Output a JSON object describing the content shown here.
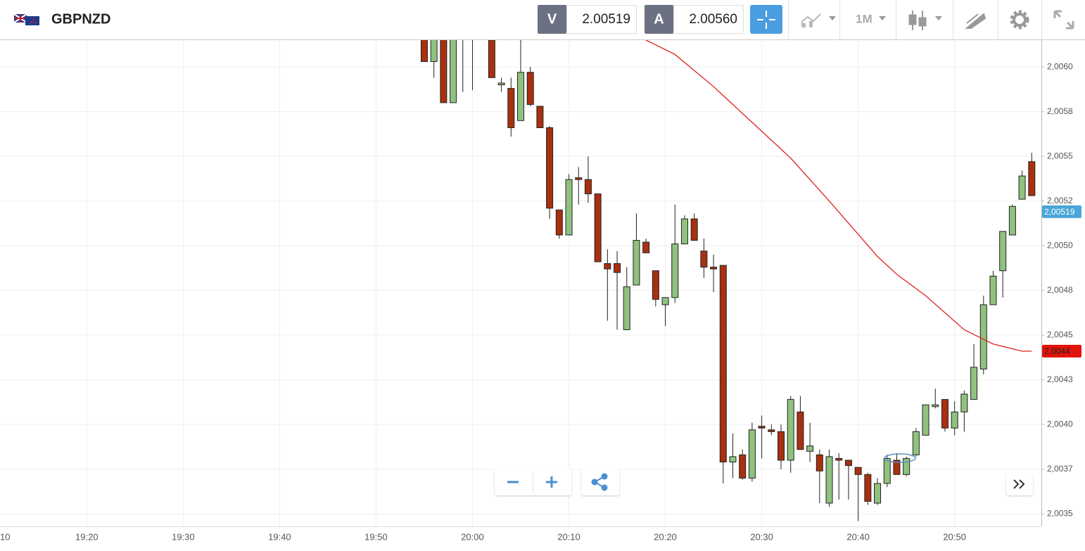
{
  "toolbar": {
    "symbol": "GBPNZD",
    "bid_label": "V",
    "bid": "2.00519",
    "ask_label": "A",
    "ask": "2.00560",
    "timeframe": "1M"
  },
  "chart_data": {
    "type": "candlestick",
    "x": [
      "19:55",
      "19:56",
      "19:57",
      "19:58",
      "19:59",
      "20:00",
      "20:02",
      "20:03",
      "20:04",
      "20:05",
      "20:06",
      "20:07",
      "20:08",
      "20:09",
      "20:10",
      "20:11",
      "20:12",
      "20:13",
      "20:14",
      "20:15",
      "20:16",
      "20:17",
      "20:18",
      "20:19",
      "20:20",
      "20:21",
      "20:22",
      "20:23",
      "20:24",
      "20:25",
      "20:26",
      "20:27",
      "20:28",
      "20:29",
      "20:30",
      "20:31",
      "20:32",
      "20:33",
      "20:34",
      "20:35",
      "20:36",
      "20:37",
      "20:38",
      "20:39",
      "20:40",
      "20:41",
      "20:42",
      "20:43",
      "20:44",
      "20:45",
      "20:46",
      "20:47",
      "20:48",
      "20:49",
      "20:50",
      "20:51",
      "20:52",
      "20:53",
      "20:54",
      "20:55",
      "20:56",
      "20:57",
      "20:58"
    ],
    "open": [
      2.00618,
      2.00603,
      2.00618,
      2.0058,
      2.0062,
      2.0062,
      2.00615,
      2.0059,
      2.00588,
      2.0057,
      2.00597,
      2.00578,
      2.00566,
      2.0052,
      2.00506,
      2.00538,
      2.00537,
      2.00529,
      2.0049,
      2.0049,
      2.00453,
      2.00478,
      2.00502,
      2.00486,
      2.00467,
      2.00471,
      2.00501,
      2.00515,
      2.00497,
      2.00488,
      2.00489,
      2.00379,
      2.00383,
      2.0037,
      2.00399,
      2.00397,
      2.00396,
      2.0038,
      2.00407,
      2.00385,
      2.00383,
      2.00356,
      2.00381,
      2.0038,
      2.00376,
      2.00372,
      2.00356,
      2.00367,
      2.0038,
      2.00372,
      2.00383,
      2.00394,
      2.0041,
      2.00414,
      2.00398,
      2.00407,
      2.00414,
      2.00431,
      2.00467,
      2.00486,
      2.00506,
      2.00526,
      2.00547
    ],
    "high": [
      2.0062,
      2.0062,
      2.0062,
      2.0062,
      2.00624,
      2.00622,
      2.00618,
      2.00594,
      2.00594,
      2.00615,
      2.006,
      2.00578,
      2.00567,
      2.0052,
      2.0054,
      2.00544,
      2.0055,
      2.00529,
      2.00498,
      2.00497,
      2.00488,
      2.00518,
      2.00504,
      2.00486,
      2.00471,
      2.00523,
      2.00517,
      2.00518,
      2.00504,
      2.00495,
      2.00489,
      2.00395,
      2.00386,
      2.00401,
      2.00405,
      2.004,
      2.004,
      2.00416,
      2.00416,
      2.00401,
      2.00386,
      2.00386,
      2.00384,
      2.0038,
      2.00376,
      2.00373,
      2.0037,
      2.00383,
      2.00384,
      2.00382,
      2.00398,
      2.00411,
      2.0042,
      2.00414,
      2.00413,
      2.00419,
      2.00445,
      2.00472,
      2.00486,
      2.00508,
      2.00523,
      2.00542,
      2.00552
    ],
    "low": [
      2.00603,
      2.00594,
      2.0058,
      2.0058,
      2.00586,
      2.00587,
      2.00594,
      2.00586,
      2.00561,
      2.0057,
      2.00578,
      2.00566,
      2.00515,
      2.00504,
      2.00506,
      2.00523,
      2.00524,
      2.00491,
      2.00458,
      2.00453,
      2.00453,
      2.00478,
      2.00496,
      2.00466,
      2.00455,
      2.00468,
      2.00501,
      2.00503,
      2.00482,
      2.00474,
      2.00367,
      2.0037,
      2.00369,
      2.00368,
      2.00381,
      2.00394,
      2.00375,
      2.00373,
      2.00386,
      2.00379,
      2.00356,
      2.00354,
      2.00358,
      2.00358,
      2.00346,
      2.00355,
      2.00355,
      2.00365,
      2.00372,
      2.00371,
      2.00382,
      2.00394,
      2.00409,
      2.00396,
      2.00394,
      2.00396,
      2.00414,
      2.00428,
      2.00467,
      2.00471,
      2.00506,
      2.00526,
      2.00528
    ],
    "close": [
      2.00603,
      2.00618,
      2.0058,
      2.00618,
      2.00622,
      2.00617,
      2.00594,
      2.00591,
      2.00566,
      2.00597,
      2.00579,
      2.00566,
      2.00521,
      2.00506,
      2.00537,
      2.00537,
      2.00529,
      2.00491,
      2.00487,
      2.00485,
      2.00477,
      2.00503,
      2.00496,
      2.0047,
      2.00471,
      2.00501,
      2.00515,
      2.00503,
      2.00488,
      2.00487,
      2.00379,
      2.00382,
      2.0037,
      2.00397,
      2.00398,
      2.00396,
      2.0038,
      2.00414,
      2.00386,
      2.00388,
      2.00374,
      2.00382,
      2.0038,
      2.00377,
      2.00372,
      2.00357,
      2.00367,
      2.00381,
      2.00372,
      2.00381,
      2.00396,
      2.00411,
      2.00411,
      2.00398,
      2.00407,
      2.00417,
      2.00432,
      2.00467,
      2.00483,
      2.00508,
      2.00522,
      2.00539,
      2.00528
    ],
    "up_color": "#8fc27e",
    "down_color": "#a8300f",
    "moving_average": {
      "color": "#e0211c",
      "x": [
        "20:14",
        "20:18",
        "20:21",
        "20:25",
        "20:29",
        "20:33",
        "20:37",
        "20:42",
        "20:44",
        "20:47",
        "20:51",
        "20:54",
        "20:57",
        "20:58"
      ],
      "values": [
        2.00628,
        2.00615,
        2.00607,
        2.00589,
        2.00569,
        2.00549,
        2.00525,
        2.00494,
        2.00484,
        2.00472,
        2.00453,
        2.00445,
        2.00441,
        2.00441
      ]
    },
    "price_labels": [
      {
        "label": "2,00519",
        "value": 2.00519,
        "color": "#4aa6d9"
      },
      {
        "label": "2,0044",
        "value": 2.00441,
        "color": "#e3130b"
      }
    ],
    "xlim": [
      "19:11",
      "20:59"
    ],
    "xticks": [
      {
        "value": "19:10",
        "label": "10"
      },
      "19:20",
      "19:30",
      "19:40",
      "19:50",
      "20:00",
      "20:10",
      "20:20",
      "20:30",
      "20:40",
      "20:50"
    ],
    "ylim": [
      2.00343,
      2.00615
    ],
    "yticks": [
      {
        "value": 2.006,
        "label": "2,0060"
      },
      {
        "value": 2.00575,
        "label": "2,0058"
      },
      {
        "value": 2.0055,
        "label": "2,0055"
      },
      {
        "value": 2.00525,
        "label": "2,0052"
      },
      {
        "value": 2.005,
        "label": "2,0050"
      },
      {
        "value": 2.00475,
        "label": "2,0048"
      },
      {
        "value": 2.0045,
        "label": "2,0045"
      },
      {
        "value": 2.00425,
        "label": "2,0043"
      },
      {
        "value": 2.004,
        "label": "2,0040"
      },
      {
        "value": 2.00375,
        "label": "2,0037"
      },
      {
        "value": 2.0035,
        "label": "2,0035"
      }
    ],
    "grid": true
  }
}
